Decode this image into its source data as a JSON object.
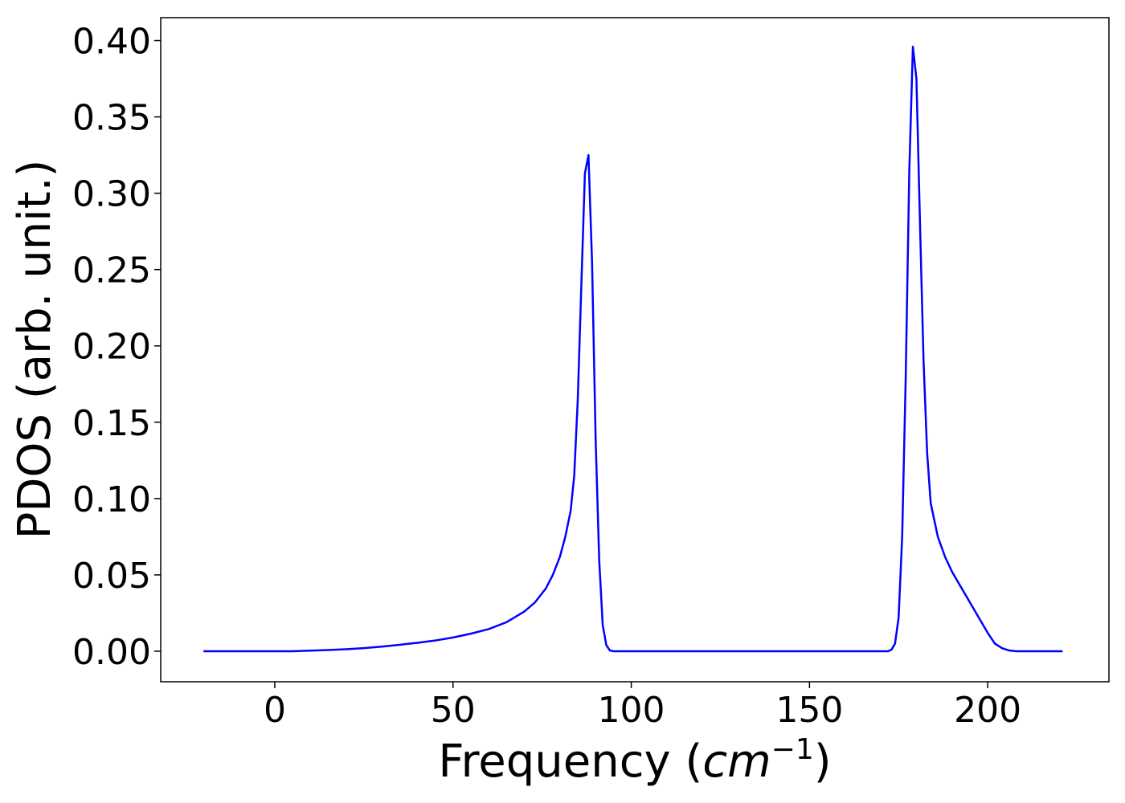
{
  "chart_data": {
    "type": "line",
    "xlabel": "Frequency (",
    "xlabel_math": "cm",
    "xlabel_sup": "−1",
    "xlabel_end": ")",
    "ylabel": "PDOS (arb. unit.)",
    "xlim": [
      -32,
      234
    ],
    "ylim": [
      -0.02,
      0.415
    ],
    "xticks": [
      0,
      50,
      100,
      150,
      200
    ],
    "xtick_labels": [
      "0",
      "50",
      "100",
      "150",
      "200"
    ],
    "yticks": [
      0.0,
      0.05,
      0.1,
      0.15,
      0.2,
      0.25,
      0.3,
      0.35,
      0.4
    ],
    "ytick_labels": [
      "0.00",
      "0.05",
      "0.10",
      "0.15",
      "0.20",
      "0.25",
      "0.30",
      "0.35",
      "0.40"
    ],
    "grid": false,
    "legend": "none",
    "series": [
      {
        "color": "#0000ff",
        "x": [
          -20,
          0,
          5,
          10,
          15,
          20,
          25,
          30,
          35,
          40,
          45,
          50,
          55,
          60,
          65,
          70,
          73,
          76,
          78,
          80,
          81.5,
          83,
          84,
          85,
          86,
          87,
          88,
          89,
          90,
          91,
          92,
          93,
          94,
          95,
          96,
          100,
          120,
          150,
          170,
          172,
          173,
          174,
          175,
          176,
          177,
          178,
          179,
          180,
          181,
          182,
          183,
          184,
          186,
          188,
          190,
          192,
          194,
          196,
          198,
          200,
          202,
          204,
          206,
          208,
          210,
          221
        ],
        "y": [
          0,
          0,
          0,
          0.0004,
          0.0008,
          0.0013,
          0.002,
          0.003,
          0.0042,
          0.0055,
          0.007,
          0.009,
          0.0115,
          0.0145,
          0.019,
          0.026,
          0.032,
          0.041,
          0.05,
          0.062,
          0.075,
          0.092,
          0.115,
          0.165,
          0.24,
          0.313,
          0.325,
          0.255,
          0.14,
          0.06,
          0.017,
          0.004,
          0.0005,
          0,
          0,
          0,
          0,
          0,
          0,
          0,
          0.001,
          0.005,
          0.022,
          0.075,
          0.18,
          0.315,
          0.396,
          0.375,
          0.28,
          0.19,
          0.13,
          0.097,
          0.075,
          0.062,
          0.052,
          0.044,
          0.036,
          0.028,
          0.02,
          0.012,
          0.005,
          0.002,
          0.0005,
          0,
          0,
          0
        ]
      }
    ]
  }
}
